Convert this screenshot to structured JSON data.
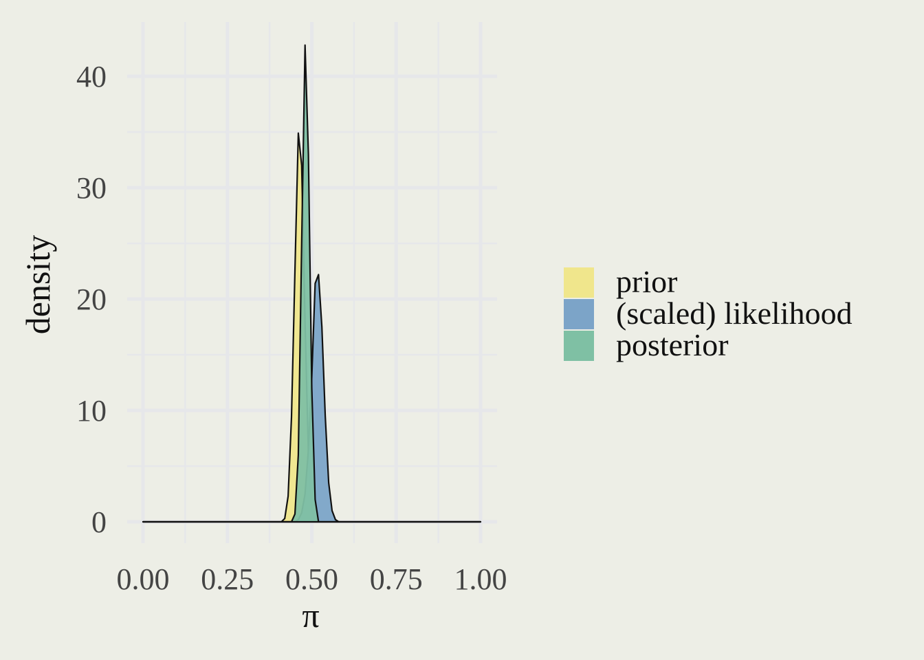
{
  "chart_data": {
    "type": "area",
    "title": "",
    "xlabel": "π",
    "ylabel": "density",
    "xlim": [
      0,
      1
    ],
    "ylim": [
      -1.5,
      44.5
    ],
    "x_ticks": [
      0,
      0.25,
      0.5,
      0.75,
      1
    ],
    "x_tick_labels": [
      "0.00",
      "0.25",
      "0.50",
      "0.75",
      "1.00"
    ],
    "y_ticks": [
      0,
      10,
      20,
      30,
      40
    ],
    "y_tick_labels": [
      "0",
      "10",
      "20",
      "30",
      "40"
    ],
    "grid": true,
    "legend_position": "right",
    "series": [
      {
        "name": "prior",
        "color": "#f0e68c",
        "x": [
          0,
          0.41,
          0.42,
          0.43,
          0.44,
          0.45,
          0.46,
          0.47,
          0.48,
          0.49,
          0.5,
          0.51,
          1
        ],
        "y": [
          0,
          0,
          0.3,
          2.3,
          9.4,
          22.5,
          34.9,
          32.0,
          18.0,
          6.0,
          1.2,
          0,
          0
        ]
      },
      {
        "name": "(scaled) likelihood",
        "color": "#7ca4c8",
        "x": [
          0,
          0.45,
          0.46,
          0.47,
          0.48,
          0.49,
          0.5,
          0.51,
          0.52,
          0.53,
          0.54,
          0.55,
          0.56,
          0.57,
          0.58,
          1
        ],
        "y": [
          0,
          0,
          0.2,
          0.8,
          2.5,
          6.5,
          13.0,
          21.4,
          22.2,
          17.5,
          9.5,
          3.5,
          1.0,
          0.2,
          0,
          0
        ]
      },
      {
        "name": "posterior",
        "color": "#7fc0a4",
        "x": [
          0,
          0.44,
          0.45,
          0.46,
          0.47,
          0.48,
          0.49,
          0.5,
          0.51,
          0.52,
          1
        ],
        "y": [
          0,
          0,
          0.7,
          6.0,
          25.0,
          42.8,
          33.0,
          12.0,
          2.0,
          0,
          0
        ]
      }
    ]
  }
}
